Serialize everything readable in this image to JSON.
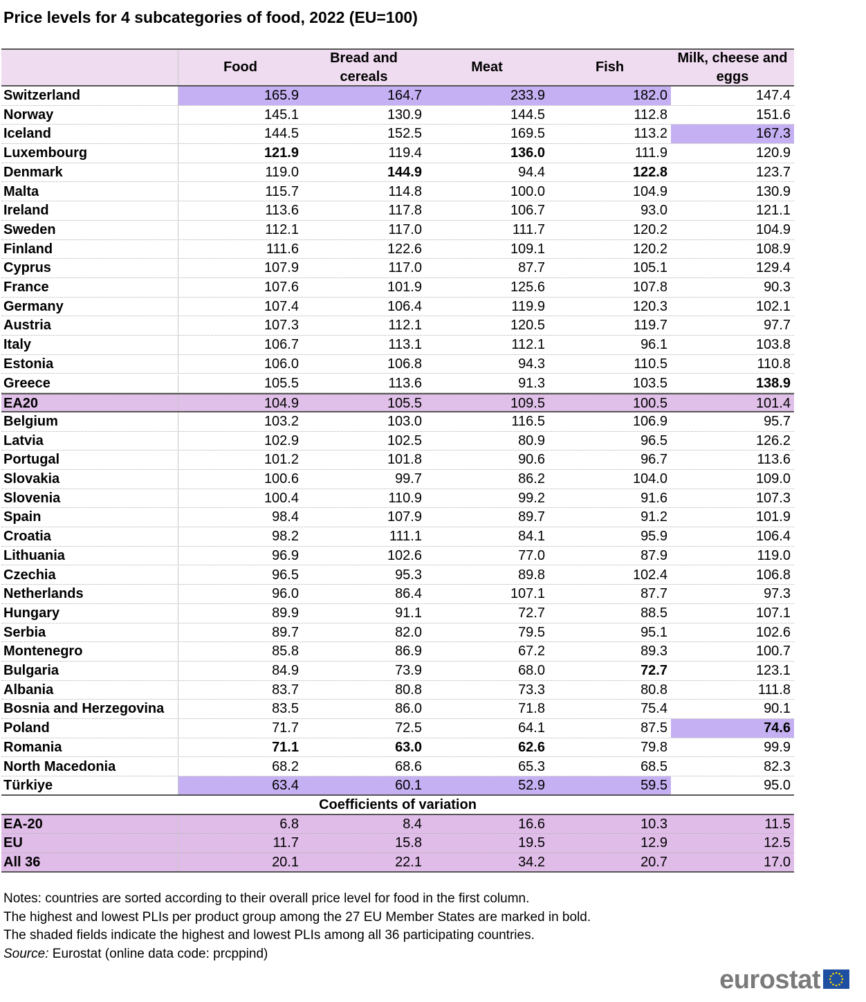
{
  "title": "Price levels for 4 subcategories of food, 2022 (EU=100)",
  "table": {
    "header": [
      "Food",
      "Bread and cereals",
      "Meat",
      "Fish",
      "Milk, cheese and eggs"
    ],
    "rows": [
      {
        "cells": [
          "Switzerland",
          "165.9",
          "164.7",
          "233.9",
          "182.0",
          "147.4"
        ],
        "shaded": [
          1,
          2,
          3,
          4
        ]
      },
      {
        "cells": [
          "Norway",
          "145.1",
          "130.9",
          "144.5",
          "112.8",
          "151.6"
        ]
      },
      {
        "cells": [
          "Iceland",
          "144.5",
          "152.5",
          "169.5",
          "113.2",
          "167.3"
        ],
        "shaded": [
          5
        ]
      },
      {
        "cells": [
          "Luxembourg",
          "121.9",
          "119.4",
          "136.0",
          "111.9",
          "120.9"
        ],
        "bold": [
          1,
          3
        ]
      },
      {
        "cells": [
          "Denmark",
          "119.0",
          "144.9",
          "94.4",
          "122.8",
          "123.7"
        ],
        "bold": [
          2,
          4
        ]
      },
      {
        "cells": [
          "Malta",
          "115.7",
          "114.8",
          "100.0",
          "104.9",
          "130.9"
        ]
      },
      {
        "cells": [
          "Ireland",
          "113.6",
          "117.8",
          "106.7",
          "93.0",
          "121.1"
        ]
      },
      {
        "cells": [
          "Sweden",
          "112.1",
          "117.0",
          "111.7",
          "120.2",
          "104.9"
        ]
      },
      {
        "cells": [
          "Finland",
          "111.6",
          "122.6",
          "109.1",
          "120.2",
          "108.9"
        ]
      },
      {
        "cells": [
          "Cyprus",
          "107.9",
          "117.0",
          "87.7",
          "105.1",
          "129.4"
        ]
      },
      {
        "cells": [
          "France",
          "107.6",
          "101.9",
          "125.6",
          "107.8",
          "90.3"
        ]
      },
      {
        "cells": [
          "Germany",
          "107.4",
          "106.4",
          "119.9",
          "120.3",
          "102.1"
        ]
      },
      {
        "cells": [
          "Austria",
          "107.3",
          "112.1",
          "120.5",
          "119.7",
          "97.7"
        ]
      },
      {
        "cells": [
          "Italy",
          "106.7",
          "113.1",
          "112.1",
          "96.1",
          "103.8"
        ]
      },
      {
        "cells": [
          "Estonia",
          "106.0",
          "106.8",
          "94.3",
          "110.5",
          "110.8"
        ]
      },
      {
        "cells": [
          "Greece",
          "105.5",
          "113.6",
          "91.3",
          "103.5",
          "138.9"
        ],
        "bold": [
          5
        ]
      },
      {
        "cells": [
          "EA20",
          "104.9",
          "105.5",
          "109.5",
          "100.5",
          "101.4"
        ],
        "highlight": true
      },
      {
        "cells": [
          "Belgium",
          "103.2",
          "103.0",
          "116.5",
          "106.9",
          "95.7"
        ]
      },
      {
        "cells": [
          "Latvia",
          "102.9",
          "102.5",
          "80.9",
          "96.5",
          "126.2"
        ]
      },
      {
        "cells": [
          "Portugal",
          "101.2",
          "101.8",
          "90.6",
          "96.7",
          "113.6"
        ]
      },
      {
        "cells": [
          "Slovakia",
          "100.6",
          "99.7",
          "86.2",
          "104.0",
          "109.0"
        ]
      },
      {
        "cells": [
          "Slovenia",
          "100.4",
          "110.9",
          "99.2",
          "91.6",
          "107.3"
        ]
      },
      {
        "cells": [
          "Spain",
          "98.4",
          "107.9",
          "89.7",
          "91.2",
          "101.9"
        ]
      },
      {
        "cells": [
          "Croatia",
          "98.2",
          "111.1",
          "84.1",
          "95.9",
          "106.4"
        ]
      },
      {
        "cells": [
          "Lithuania",
          "96.9",
          "102.6",
          "77.0",
          "87.9",
          "119.0"
        ]
      },
      {
        "cells": [
          "Czechia",
          "96.5",
          "95.3",
          "89.8",
          "102.4",
          "106.8"
        ]
      },
      {
        "cells": [
          "Netherlands",
          "96.0",
          "86.4",
          "107.1",
          "87.7",
          "97.3"
        ]
      },
      {
        "cells": [
          "Hungary",
          "89.9",
          "91.1",
          "72.7",
          "88.5",
          "107.1"
        ]
      },
      {
        "cells": [
          "Serbia",
          "89.7",
          "82.0",
          "79.5",
          "95.1",
          "102.6"
        ]
      },
      {
        "cells": [
          "Montenegro",
          "85.8",
          "86.9",
          "67.2",
          "89.3",
          "100.7"
        ]
      },
      {
        "cells": [
          "Bulgaria",
          "84.9",
          "73.9",
          "68.0",
          "72.7",
          "123.1"
        ],
        "bold": [
          4
        ]
      },
      {
        "cells": [
          "Albania",
          "83.7",
          "80.8",
          "73.3",
          "80.8",
          "111.8"
        ]
      },
      {
        "cells": [
          "Bosnia and Herzegovina",
          "83.5",
          "86.0",
          "71.8",
          "75.4",
          "90.1"
        ]
      },
      {
        "cells": [
          "Poland",
          "71.7",
          "72.5",
          "64.1",
          "87.5",
          "74.6"
        ],
        "bold": [
          5
        ],
        "shaded": [
          5
        ]
      },
      {
        "cells": [
          "Romania",
          "71.1",
          "63.0",
          "62.6",
          "79.8",
          "99.9"
        ],
        "bold": [
          1,
          2,
          3
        ]
      },
      {
        "cells": [
          "North Macedonia",
          "68.2",
          "68.6",
          "65.3",
          "68.5",
          "82.3"
        ]
      },
      {
        "cells": [
          "Türkiye",
          "63.4",
          "60.1",
          "52.9",
          "59.5",
          "95.0"
        ],
        "shaded": [
          1,
          2,
          3,
          4
        ]
      }
    ],
    "cov_title": "Coefficients of variation",
    "cov_rows": [
      [
        "EA-20",
        "6.8",
        "8.4",
        "16.6",
        "10.3",
        "11.5"
      ],
      [
        "EU",
        "11.7",
        "15.8",
        "19.5",
        "12.9",
        "12.5"
      ],
      [
        "All 36",
        "20.1",
        "22.1",
        "34.2",
        "20.7",
        "17.0"
      ]
    ]
  },
  "notes": [
    "Notes: countries are sorted according to their overall price level for food in the first column.",
    "The highest and lowest PLIs per product group among the 27 EU Member States are marked in bold.",
    "The shaded fields indicate the highest and lowest PLIs among all 36 participating countries."
  ],
  "source": {
    "label": "Source:",
    "text": "Eurostat (online data code: prcppind)"
  },
  "logo": "eurostat"
}
